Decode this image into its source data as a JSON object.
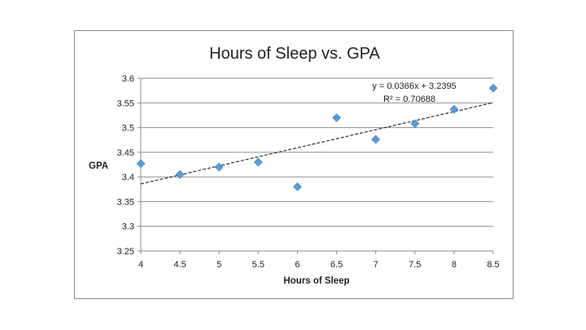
{
  "chart_data": {
    "type": "scatter",
    "title": "Hours of Sleep vs. GPA",
    "xlabel": "Hours of Sleep",
    "ylabel": "GPA",
    "xlim": [
      4,
      8.5
    ],
    "ylim": [
      3.25,
      3.6
    ],
    "x_ticks": [
      "4",
      "4.5",
      "5",
      "5.5",
      "6",
      "6.5",
      "7",
      "7.5",
      "8",
      "8.5"
    ],
    "y_ticks": [
      "3.25",
      "3.3",
      "3.35",
      "3.4",
      "3.45",
      "3.5",
      "3.55",
      "3.6"
    ],
    "grid": "horizontal",
    "series": [
      {
        "name": "GPA",
        "marker": "diamond",
        "color": "#5b9bd5",
        "x": [
          4,
          4.5,
          5,
          5.5,
          6,
          6.5,
          7,
          7.5,
          8,
          8.5
        ],
        "y": [
          3.427,
          3.405,
          3.42,
          3.43,
          3.38,
          3.52,
          3.476,
          3.508,
          3.537,
          3.58
        ]
      }
    ],
    "trendline": {
      "type": "linear",
      "slope": 0.0366,
      "intercept": 3.2395,
      "style": "dashed",
      "color": "#222222"
    },
    "annotations": {
      "equation": "y = 0.0366x + 3.2395",
      "r_squared": "R² = 0.70688"
    }
  }
}
